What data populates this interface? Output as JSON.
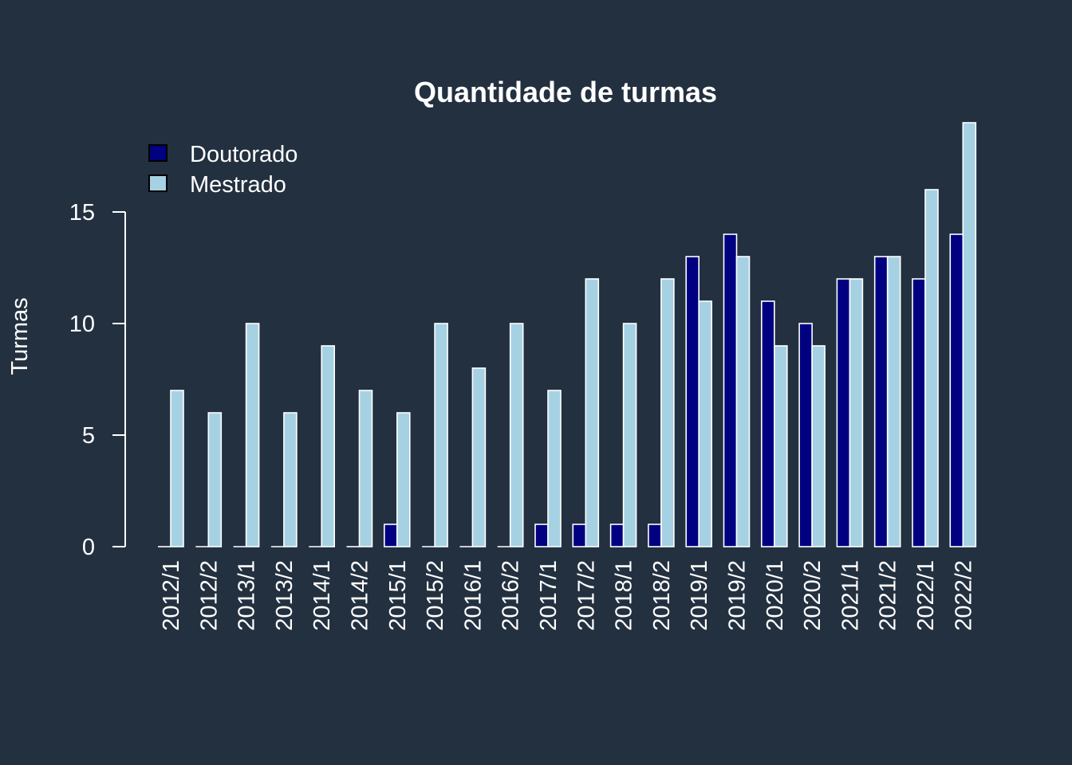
{
  "colors": {
    "background": "#233040",
    "doutorado": "#000080",
    "mestrado": "#A6D1E3",
    "bar_border": "#FFFFFF",
    "axis": "#FFFFFF",
    "text": "#FFFFFF"
  },
  "chart_data": {
    "type": "bar",
    "title": "Quantidade de turmas",
    "xlabel": "",
    "ylabel": "Turmas",
    "ylim": [
      0,
      19
    ],
    "yticks": [
      0,
      5,
      10,
      15
    ],
    "grid": false,
    "legend_position": "top-left",
    "categories": [
      "2012/1",
      "2012/2",
      "2013/1",
      "2013/2",
      "2014/1",
      "2014/2",
      "2015/1",
      "2015/2",
      "2016/1",
      "2016/2",
      "2017/1",
      "2017/2",
      "2018/1",
      "2018/2",
      "2019/1",
      "2019/2",
      "2020/1",
      "2020/2",
      "2021/1",
      "2021/2",
      "2022/1",
      "2022/2"
    ],
    "series": [
      {
        "name": "Doutorado",
        "values": [
          0,
          0,
          0,
          0,
          0,
          0,
          1,
          0,
          0,
          0,
          1,
          1,
          1,
          1,
          13,
          14,
          11,
          10,
          12,
          13,
          12,
          14
        ]
      },
      {
        "name": "Mestrado",
        "values": [
          7,
          6,
          10,
          6,
          9,
          7,
          6,
          10,
          8,
          10,
          7,
          12,
          10,
          12,
          11,
          13,
          9,
          9,
          12,
          13,
          16,
          19
        ]
      }
    ]
  }
}
